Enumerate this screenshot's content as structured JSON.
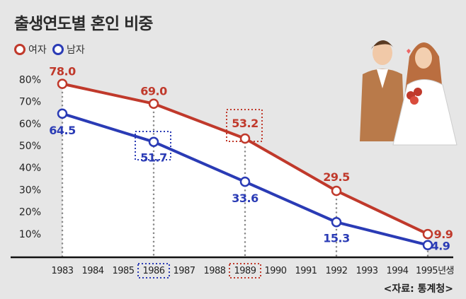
{
  "title": "출생연도별 혼인 비중",
  "source": "<자료: 통계청>",
  "colors": {
    "female": "#c0392b",
    "male": "#2a3bb5"
  },
  "chart_data": {
    "type": "line",
    "title": "출생연도별 혼인 비중",
    "x_ticks": [
      "1983",
      "1984",
      "1985",
      "1986",
      "1987",
      "1988",
      "1989",
      "1990",
      "1991",
      "1992",
      "1993",
      "1994",
      "1995년생"
    ],
    "y_ticks": [
      "10%",
      "20%",
      "30%",
      "40%",
      "50%",
      "60%",
      "70%",
      "80%"
    ],
    "ylim": [
      0,
      80
    ],
    "highlighted_years": {
      "male": "1986",
      "female": "1989"
    },
    "series": [
      {
        "name": "여자",
        "color": "#c0392b",
        "x": [
          1983,
          1986,
          1989,
          1992,
          1995
        ],
        "values": [
          78.0,
          69.0,
          53.2,
          29.5,
          9.9
        ],
        "labels": [
          "78.0",
          "69.0",
          "53.2",
          "29.5",
          "9.9"
        ]
      },
      {
        "name": "남자",
        "color": "#2a3bb5",
        "x": [
          1983,
          1986,
          1989,
          1992,
          1995
        ],
        "values": [
          64.5,
          51.7,
          33.6,
          15.3,
          4.9
        ],
        "labels": [
          "64.5",
          "51.7",
          "33.6",
          "15.3",
          "4.9"
        ]
      }
    ],
    "legend": "top-left"
  }
}
